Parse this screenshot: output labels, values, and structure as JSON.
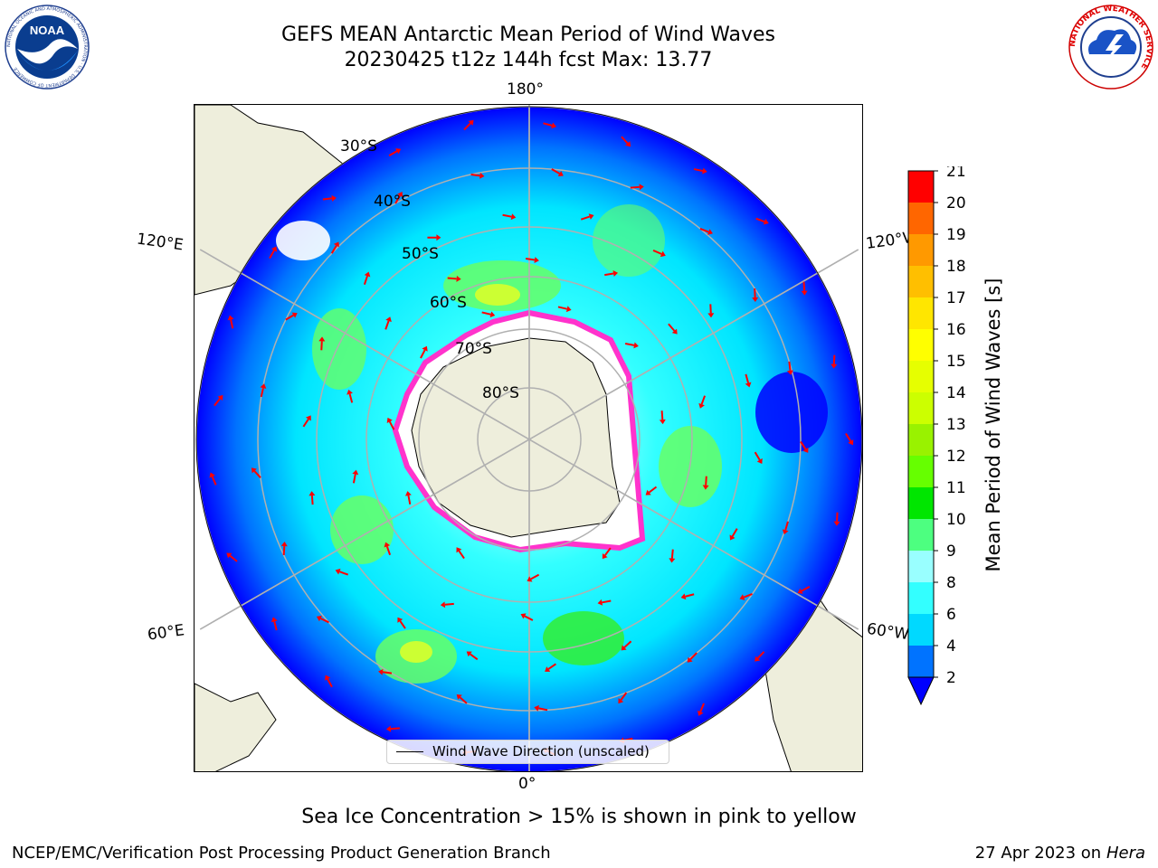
{
  "title": {
    "line1": "GEFS MEAN Antarctic Mean Period of Wind Waves",
    "line2": "20230425 t12z 144h fcst   Max: 13.77"
  },
  "logos": {
    "left": "NOAA",
    "left_ring_text": "NATIONAL OCEANIC AND ATMOSPHERIC ADMINISTRATION · U.S. DEPARTMENT OF COMMERCE",
    "right_ring_text": "NATIONAL WEATHER SERVICE"
  },
  "map": {
    "projection": "South Polar Stereographic",
    "longitude_labels": {
      "top": "180°",
      "bottom": "0°",
      "upper_left": "120°E",
      "lower_left": "60°E",
      "upper_right": "120°W",
      "lower_right": "60°W"
    },
    "latitude_labels": [
      "30°S",
      "40°S",
      "50°S",
      "60°S",
      "70°S",
      "80°S"
    ],
    "legend_label": "Wind Wave Direction (unscaled)",
    "colors": {
      "land": "#eeeedc",
      "ocean_low": "#0000ff",
      "ocean_mid": "#00e5ff",
      "ocean_high": "#66ff00",
      "ice_edge": "#ff33cc",
      "arrows": "#ff0000"
    }
  },
  "colorbar": {
    "label": "Mean Period of Wind Waves [s]",
    "ticks": [
      "2",
      "4",
      "6",
      "8",
      "9",
      "10",
      "11",
      "12",
      "13",
      "14",
      "15",
      "16",
      "17",
      "18",
      "19",
      "20",
      "21"
    ],
    "colors": [
      "#0073ff",
      "#00d9ff",
      "#33ffff",
      "#99ffff",
      "#4dff80",
      "#00e600",
      "#66ff00",
      "#99f200",
      "#ccff00",
      "#e6ff00",
      "#ffff00",
      "#ffe600",
      "#ffbf00",
      "#ff9900",
      "#ff6600",
      "#ff3300"
    ],
    "extend_color": "#0000ff",
    "top_color": "#ff0000"
  },
  "caption": "Sea Ice Concentration > 15% is shown in pink to yellow",
  "footer": {
    "left": "NCEP/EMC/Verification Post Processing Product Generation Branch",
    "right_date": "27 Apr 2023 on ",
    "right_machine": "Hera"
  }
}
